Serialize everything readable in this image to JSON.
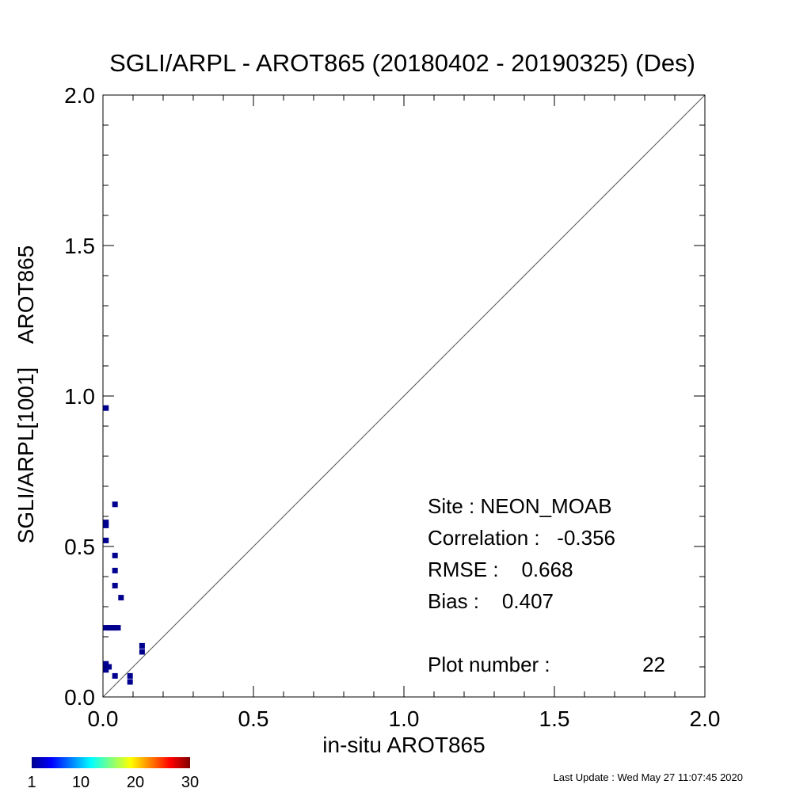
{
  "chart_data": {
    "type": "scatter",
    "title": "SGLI/ARPL - AROT865 (20180402 - 20190325) (Des)",
    "xlabel": "in-situ AROT865",
    "ylabel": "SGLI/ARPL[1001]    AROT865",
    "xlim": [
      0.0,
      2.0
    ],
    "ylim": [
      0.0,
      2.0
    ],
    "major_ticks": [
      "0.0",
      "0.5",
      "1.0",
      "1.5",
      "2.0"
    ],
    "major_tick_values": [
      0.0,
      0.5,
      1.0,
      1.5,
      2.0
    ],
    "minor_tick_step": 0.1,
    "grid": false,
    "one_to_one_line": true,
    "cell_size": 0.01,
    "points": [
      {
        "x": 0.01,
        "y": 0.96,
        "count": 1
      },
      {
        "x": 0.04,
        "y": 0.64,
        "count": 1
      },
      {
        "x": 0.01,
        "y": 0.58,
        "count": 1
      },
      {
        "x": 0.01,
        "y": 0.57,
        "count": 1
      },
      {
        "x": 0.01,
        "y": 0.52,
        "count": 1
      },
      {
        "x": 0.04,
        "y": 0.47,
        "count": 1
      },
      {
        "x": 0.04,
        "y": 0.42,
        "count": 1
      },
      {
        "x": 0.04,
        "y": 0.37,
        "count": 1
      },
      {
        "x": 0.06,
        "y": 0.33,
        "count": 1
      },
      {
        "x": 0.01,
        "y": 0.23,
        "count": 1
      },
      {
        "x": 0.02,
        "y": 0.23,
        "count": 1
      },
      {
        "x": 0.03,
        "y": 0.23,
        "count": 1
      },
      {
        "x": 0.04,
        "y": 0.23,
        "count": 1
      },
      {
        "x": 0.05,
        "y": 0.23,
        "count": 1
      },
      {
        "x": 0.13,
        "y": 0.17,
        "count": 1
      },
      {
        "x": 0.13,
        "y": 0.15,
        "count": 1
      },
      {
        "x": 0.01,
        "y": 0.11,
        "count": 1
      },
      {
        "x": 0.01,
        "y": 0.09,
        "count": 1
      },
      {
        "x": 0.04,
        "y": 0.07,
        "count": 1
      },
      {
        "x": 0.09,
        "y": 0.07,
        "count": 1
      },
      {
        "x": 0.09,
        "y": 0.05,
        "count": 1
      },
      {
        "x": 0.02,
        "y": 0.1,
        "count": 1
      }
    ],
    "annotations": {
      "site": "Site : NEON_MOAB",
      "correlation": "Correlation :   -0.356",
      "rmse": "RMSE :    0.668",
      "bias": "Bias :    0.407",
      "plot_number_label": "Plot number :",
      "plot_number_value": "22"
    },
    "colorbar": {
      "colormap": "jet",
      "min": 1,
      "max": 30,
      "tick_labels": [
        "1",
        "10",
        "20",
        "30"
      ],
      "tick_values": [
        1,
        10,
        20,
        30
      ]
    }
  },
  "footer": {
    "last_update": "Last Update : Wed May 27 11:07:45 2020"
  }
}
